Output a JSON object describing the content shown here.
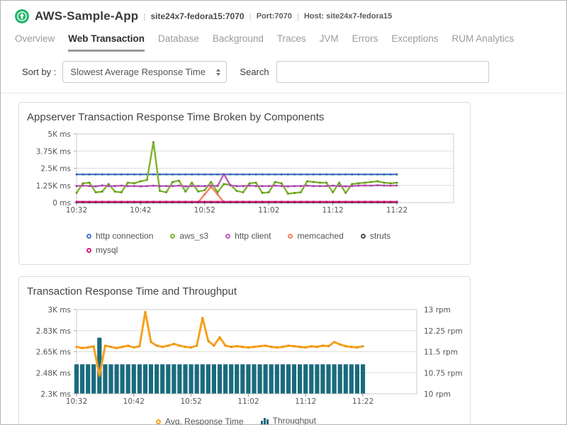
{
  "header": {
    "app_name": "AWS-Sample-App",
    "instance": "site24x7-fedora15:7070",
    "port_label": "Port:7070",
    "host_label": "Host: site24x7-fedora15",
    "separator": "|",
    "icon_color": "#27b56f",
    "icon_name": "monitor-up-arrow-icon"
  },
  "tabs": [
    {
      "label": "Overview",
      "active": false
    },
    {
      "label": "Web Transaction",
      "active": true
    },
    {
      "label": "Database",
      "active": false
    },
    {
      "label": "Background",
      "active": false
    },
    {
      "label": "Traces",
      "active": false
    },
    {
      "label": "JVM",
      "active": false
    },
    {
      "label": "Errors",
      "active": false
    },
    {
      "label": "Exceptions",
      "active": false
    },
    {
      "label": "RUM Analytics",
      "active": false
    }
  ],
  "toolbar": {
    "sort_label": "Sort by :",
    "sort_value": "Slowest Average Response Time",
    "search_label": "Search",
    "search_value": ""
  },
  "chart_data": [
    {
      "type": "line",
      "title": "Appserver Transaction Response Time Broken by Components",
      "x_tick_labels": [
        "10:32",
        "10:42",
        "10:52",
        "11:02",
        "11:12",
        "11:22"
      ],
      "x_tick_every": 10,
      "n_points": 51,
      "y_axis": {
        "min": 0,
        "max": 5000,
        "tick_labels": [
          "0 ms",
          "1.25K ms",
          "2.5K ms",
          "3.75K ms",
          "5K ms"
        ]
      },
      "unit": "ms",
      "grid": true,
      "legend_position": "bottom",
      "legend_rows": [
        [
          0,
          1,
          2,
          3,
          4
        ],
        [
          5
        ]
      ],
      "series": [
        {
          "name": "http connection",
          "color": "#4a7bc8",
          "marker": "#2d5fa8",
          "constant": 2050
        },
        {
          "name": "aws_s3",
          "color": "#7cb52b",
          "marker": "#5a8f1f",
          "values": [
            700,
            1400,
            1450,
            750,
            800,
            1350,
            800,
            750,
            1450,
            1400,
            1550,
            1650,
            4400,
            850,
            750,
            1500,
            1600,
            800,
            1450,
            800,
            900,
            1500,
            750,
            1350,
            1300,
            850,
            750,
            1400,
            1450,
            700,
            750,
            1500,
            1400,
            650,
            700,
            750,
            1550,
            1500,
            1450,
            1450,
            750,
            1450,
            700,
            1350,
            1400,
            1450,
            1500,
            1550,
            1450,
            1400,
            1450
          ]
        },
        {
          "name": "http client",
          "color": "#b95cb9",
          "marker": "#9a3f9a",
          "values": [
            1200,
            1230,
            1200,
            1180,
            1250,
            1200,
            1200,
            1230,
            1200,
            1200,
            1180,
            1200,
            1230,
            1200,
            1200,
            1200,
            1230,
            1180,
            1200,
            1200,
            1200,
            1230,
            1200,
            2080,
            1250,
            1200,
            1200,
            1230,
            1200,
            1200,
            1200,
            1230,
            1200,
            1180,
            1200,
            1200,
            1230,
            1200,
            1200,
            1200,
            1230,
            1200,
            1180,
            1200,
            1230,
            1250,
            1230,
            1260,
            1240,
            1230,
            1240
          ]
        },
        {
          "name": "memcached",
          "color": "#f4845f",
          "marker": "#e06a40",
          "values": [
            30,
            30,
            30,
            30,
            30,
            30,
            30,
            30,
            30,
            30,
            30,
            30,
            30,
            30,
            30,
            30,
            30,
            30,
            30,
            30,
            600,
            1150,
            600,
            30,
            30,
            30,
            30,
            30,
            30,
            30,
            30,
            30,
            30,
            30,
            30,
            30,
            30,
            30,
            30,
            30,
            30,
            30,
            30,
            30,
            30,
            30,
            30,
            30,
            30,
            30,
            30
          ]
        },
        {
          "name": "struts",
          "color": "#4d4d57",
          "marker": "#35353d",
          "constant": 15
        },
        {
          "name": "mysql",
          "color": "#d9197a",
          "marker": "#b01060",
          "constant": 60
        }
      ]
    },
    {
      "type": "combo",
      "title": "Transaction Response Time and Throughput",
      "x_tick_labels": [
        "10:32",
        "10:42",
        "10:52",
        "11:02",
        "11:12",
        "11:22"
      ],
      "x_tick_every": 10,
      "n_points": 51,
      "y_left": {
        "min": 2300,
        "max": 3000,
        "unit": "ms",
        "tick_labels": [
          "2.3K ms",
          "2.48K ms",
          "2.65K ms",
          "2.83K ms",
          "3K ms"
        ]
      },
      "y_right": {
        "min": 10,
        "max": 13,
        "unit": "rpm",
        "tick_labels": [
          "10 rpm",
          "10.75 rpm",
          "11.5 rpm",
          "12.25 rpm",
          "13 rpm"
        ]
      },
      "grid": true,
      "legend_position": "bottom-center",
      "legend_rows": [
        [
          0,
          1
        ]
      ],
      "series": [
        {
          "name": "Avg. Response Time",
          "type": "line",
          "axis": "left",
          "color": "#f7a11d",
          "marker": "#e58c07",
          "width": 3,
          "values": [
            2690,
            2680,
            2685,
            2695,
            2450,
            2700,
            2690,
            2680,
            2690,
            2700,
            2685,
            2695,
            2980,
            2730,
            2700,
            2690,
            2700,
            2715,
            2700,
            2690,
            2685,
            2700,
            2930,
            2740,
            2700,
            2770,
            2700,
            2690,
            2695,
            2690,
            2685,
            2690,
            2695,
            2700,
            2690,
            2685,
            2690,
            2700,
            2695,
            2690,
            2685,
            2695,
            2690,
            2700,
            2695,
            2730,
            2710,
            2695,
            2690,
            2685,
            2695
          ]
        },
        {
          "name": "Throughput",
          "type": "bar",
          "axis": "right",
          "color": "#1a6b7d",
          "values": [
            11.05,
            11.05,
            11.05,
            11.05,
            12,
            11.05,
            11.05,
            11.05,
            11.05,
            11.05,
            11.05,
            11.05,
            11.05,
            11.05,
            11.05,
            11.05,
            11.05,
            11.05,
            11.05,
            11.05,
            11.05,
            11.05,
            11.05,
            11.05,
            11.05,
            11.05,
            11.05,
            11.05,
            11.05,
            11.05,
            11.05,
            11.05,
            11.05,
            11.05,
            11.05,
            11.05,
            11.05,
            11.05,
            11.05,
            11.05,
            11.05,
            11.05,
            11.05,
            11.05,
            11.05,
            11.05,
            11.05,
            11.05,
            11.05,
            11.05,
            11.05
          ]
        }
      ]
    }
  ]
}
